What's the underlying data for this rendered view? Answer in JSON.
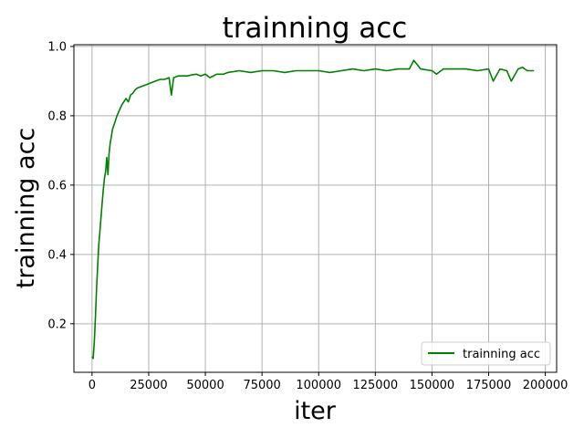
{
  "chart_data": {
    "type": "line",
    "title": "trainning acc",
    "xlabel": "iter",
    "ylabel": "trainning acc",
    "xlim": [
      -8000,
      205000
    ],
    "ylim": [
      0.06,
      1.005
    ],
    "x_ticks": [
      0,
      25000,
      50000,
      75000,
      100000,
      125000,
      150000,
      175000,
      200000
    ],
    "x_tick_labels": [
      "0",
      "25000",
      "50000",
      "75000",
      "100000",
      "125000",
      "150000",
      "175000",
      "200000"
    ],
    "y_ticks": [
      0.2,
      0.4,
      0.6,
      0.8,
      1.0
    ],
    "y_tick_labels": [
      "0.2",
      "0.4",
      "0.6",
      "0.8",
      "1.0"
    ],
    "grid": true,
    "legend_position": "lower-right",
    "series": [
      {
        "name": "trainning acc",
        "color": "#008000",
        "x": [
          0,
          500,
          1000,
          1500,
          2000,
          2500,
          3000,
          3500,
          4000,
          4500,
          5000,
          5500,
          6000,
          6500,
          7000,
          7500,
          8000,
          8500,
          9000,
          10000,
          11000,
          12000,
          13000,
          14000,
          15000,
          16000,
          17000,
          18000,
          19000,
          20000,
          22000,
          24000,
          26000,
          28000,
          30000,
          32000,
          34000,
          35000,
          36000,
          38000,
          40000,
          42000,
          44000,
          46000,
          48000,
          50000,
          52000,
          55000,
          58000,
          60000,
          65000,
          70000,
          75000,
          80000,
          85000,
          90000,
          95000,
          100000,
          105000,
          110000,
          115000,
          120000,
          125000,
          130000,
          135000,
          140000,
          142000,
          145000,
          150000,
          152000,
          155000,
          160000,
          165000,
          170000,
          175000,
          177000,
          180000,
          183000,
          185000,
          188000,
          190000,
          192000,
          195000
        ],
        "y": [
          0.105,
          0.1,
          0.15,
          0.22,
          0.3,
          0.37,
          0.43,
          0.47,
          0.51,
          0.55,
          0.59,
          0.62,
          0.64,
          0.68,
          0.63,
          0.69,
          0.72,
          0.74,
          0.76,
          0.78,
          0.8,
          0.815,
          0.83,
          0.84,
          0.85,
          0.84,
          0.86,
          0.865,
          0.875,
          0.88,
          0.885,
          0.89,
          0.895,
          0.9,
          0.905,
          0.905,
          0.91,
          0.86,
          0.91,
          0.915,
          0.915,
          0.915,
          0.918,
          0.92,
          0.915,
          0.92,
          0.91,
          0.92,
          0.92,
          0.925,
          0.93,
          0.925,
          0.93,
          0.93,
          0.925,
          0.93,
          0.93,
          0.93,
          0.925,
          0.93,
          0.935,
          0.93,
          0.935,
          0.93,
          0.935,
          0.935,
          0.96,
          0.935,
          0.93,
          0.92,
          0.935,
          0.935,
          0.935,
          0.93,
          0.935,
          0.9,
          0.935,
          0.93,
          0.9,
          0.935,
          0.94,
          0.93,
          0.93
        ]
      }
    ]
  }
}
